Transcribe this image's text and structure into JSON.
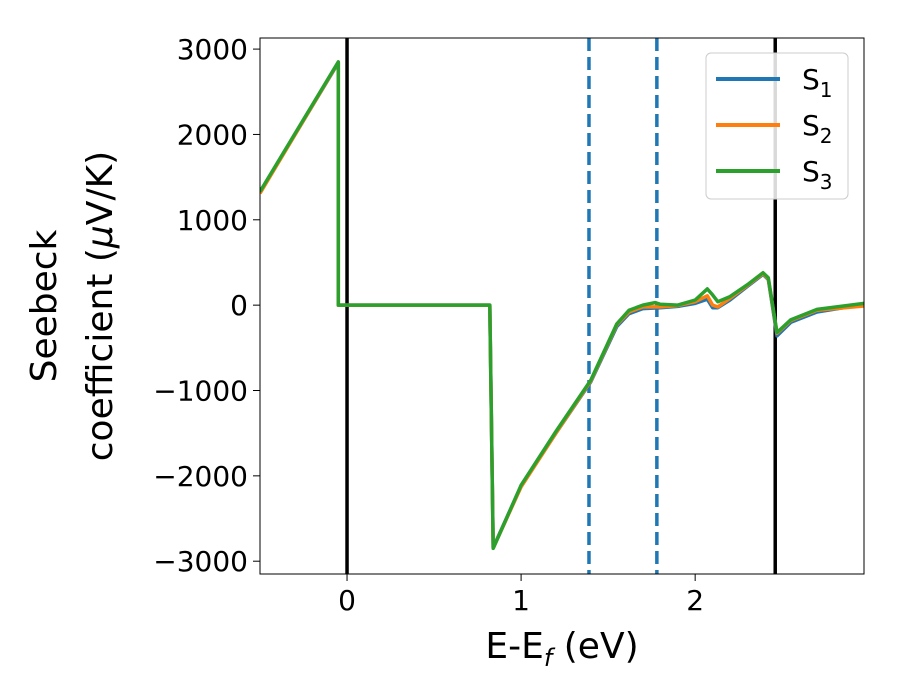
{
  "chart_data": {
    "type": "line",
    "xlabel_main": "E-E",
    "xlabel_sub": "f",
    "xlabel_unit": " (eV)",
    "ylabel_line1": "Seebeck",
    "ylabel_line2_pre": "coefficient  (",
    "ylabel_mu": "μ",
    "ylabel_line2_post": "V/K)",
    "xlim": [
      -0.5,
      2.97
    ],
    "ylim": [
      -3150,
      3130
    ],
    "xticks": [
      0,
      1,
      2
    ],
    "yticks": [
      3000,
      2000,
      1000,
      0,
      -1000,
      -2000,
      -3000
    ],
    "xtick_labels": [
      "0",
      "1",
      "2"
    ],
    "ytick_labels": [
      "3000",
      "2000",
      "1000",
      "0",
      "−1000",
      "−2000",
      "−3000"
    ],
    "vlines": [
      {
        "x": 0.0,
        "style": "solid",
        "color": "#000000"
      },
      {
        "x": 2.46,
        "style": "solid",
        "color": "#000000"
      },
      {
        "x": 1.39,
        "style": "dashed",
        "color": "#1f77b4"
      },
      {
        "x": 1.78,
        "style": "dashed",
        "color": "#1f77b4"
      }
    ],
    "legend_placement": "top-right",
    "series": [
      {
        "name": "S",
        "sub": "1",
        "color": "#1f77b4",
        "x": [
          -0.5,
          -0.05,
          -0.05,
          0.82,
          0.82,
          0.84,
          1.0,
          1.2,
          1.4,
          1.55,
          1.62,
          1.7,
          1.8,
          1.9,
          2.0,
          2.07,
          2.1,
          2.13,
          2.2,
          2.3,
          2.39,
          2.42,
          2.47,
          2.55,
          2.7,
          2.97
        ],
        "y": [
          1320,
          2840,
          0,
          0,
          -1,
          -2840,
          -2120,
          -1500,
          -900,
          -250,
          -100,
          -40,
          -30,
          -15,
          20,
          70,
          -30,
          -30,
          60,
          220,
          360,
          300,
          -360,
          -200,
          -80,
          10
        ]
      },
      {
        "name": "S",
        "sub": "2",
        "color": "#ff7f0e",
        "x": [
          -0.5,
          -0.05,
          -0.05,
          0.82,
          0.82,
          0.84,
          1.0,
          1.2,
          1.4,
          1.55,
          1.62,
          1.7,
          1.8,
          1.9,
          2.0,
          2.07,
          2.1,
          2.13,
          2.2,
          2.3,
          2.39,
          2.42,
          2.47,
          2.55,
          2.7,
          2.97
        ],
        "y": [
          1310,
          2845,
          0,
          0,
          -1,
          -2845,
          -2130,
          -1500,
          -890,
          -230,
          -80,
          -20,
          -20,
          -5,
          40,
          110,
          0,
          -20,
          80,
          230,
          370,
          310,
          -330,
          -180,
          -60,
          -10
        ]
      },
      {
        "name": "S",
        "sub": "3",
        "color": "#2ca02c",
        "x": [
          -0.5,
          -0.05,
          -0.05,
          0.82,
          0.82,
          0.84,
          1.0,
          1.2,
          1.4,
          1.55,
          1.62,
          1.7,
          1.77,
          1.8,
          1.9,
          2.0,
          2.07,
          2.1,
          2.13,
          2.2,
          2.3,
          2.39,
          2.42,
          2.47,
          2.55,
          2.7,
          2.97
        ],
        "y": [
          1330,
          2850,
          0,
          0,
          -1,
          -2850,
          -2110,
          -1480,
          -880,
          -220,
          -60,
          0,
          30,
          10,
          0,
          60,
          190,
          120,
          40,
          100,
          240,
          380,
          320,
          -320,
          -170,
          -50,
          20
        ]
      }
    ]
  }
}
